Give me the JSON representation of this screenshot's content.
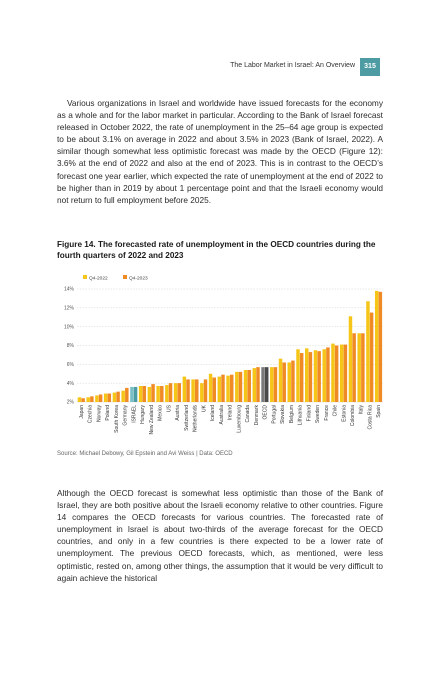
{
  "header": {
    "running_title": "The Labor Market in Israel: An Overview",
    "page_number": "315",
    "accent_color": "#4d9ba3"
  },
  "body": {
    "paragraph_1": "Various organizations in Israel and worldwide have issued forecasts for the economy as a whole and for the labor market in particular. According to the Bank of Israel forecast released in October 2022, the rate of unemployment in the 25–64 age group is expected to be about 3.1% on average in 2022 and about 3.5% in 2023 (Bank of Israel, 2022). A similar though somewhat less optimistic forecast was made by the OECD (Figure 12): 3.6% at the end of 2022 and also at the end of 2023. This is in contrast to the OECD’s forecast one year earlier, which expected the rate of unemployment at the end of 2022 to be higher than in 2019 by about 1 percentage point and that the Israeli economy would not return to full employment before 2025.",
    "paragraph_2": "Although the OECD forecast is somewhat less optimistic than those of the Bank of Israel, they are both positive about the Israeli economy relative to other countries. Figure 14 compares the OECD forecasts for various countries. The forecasted rate of unemployment in Israel is about two-thirds of the average forecast for the OECD countries, and only in a few countries is there expected to be a lower rate of unemployment. The previous OECD forecasts, which, as mentioned, were less optimistic, rested on, among other things, the assumption that it would be very difficult to again achieve the historical"
  },
  "figure": {
    "title": "Figure 14. The forecasted rate of unemployment in the OECD countries during the fourth quarters of 2022 and 2023",
    "source": "Source: Michael Debowy, Gil Epstein and Avi Weiss | Data: OECD"
  },
  "chart_data": {
    "type": "bar",
    "categories": [
      "Japan",
      "Czechia",
      "Norway",
      "Poland",
      "South Korea",
      "Germany",
      "ISRAEL",
      "Hungary",
      "New Zealand",
      "Mexico",
      "US",
      "Austria",
      "Switzerland",
      "Netherlands",
      "UK",
      "Iceland",
      "Australia",
      "Ireland",
      "Luxembourg",
      "Canada",
      "Denmark",
      "OECD",
      "Portugal",
      "Slovakia",
      "Belgium",
      "Lithuania",
      "Finland",
      "Sweden",
      "France",
      "Chile",
      "Estonia",
      "Colombia",
      "Italy",
      "Costa Rica",
      "Spain"
    ],
    "series": [
      {
        "name": "Q4-2022",
        "color": "#f5c518",
        "values": [
          2.5,
          2.5,
          2.7,
          2.9,
          3.0,
          3.2,
          3.6,
          3.7,
          3.6,
          3.7,
          3.8,
          4.0,
          4.7,
          4.4,
          4.0,
          5.0,
          4.7,
          4.8,
          5.2,
          5.4,
          5.6,
          5.7,
          5.7,
          6.6,
          6.2,
          7.6,
          7.7,
          7.5,
          7.6,
          8.2,
          8.1,
          11.1,
          9.3,
          12.7,
          13.8
        ]
      },
      {
        "name": "Q4-2023",
        "color": "#f08a24",
        "values": [
          2.4,
          2.6,
          2.8,
          2.9,
          3.1,
          3.5,
          3.6,
          3.7,
          3.9,
          3.7,
          4.0,
          4.0,
          4.4,
          4.4,
          4.4,
          4.6,
          4.9,
          4.9,
          5.2,
          5.4,
          5.7,
          5.7,
          5.7,
          6.2,
          6.4,
          7.2,
          7.3,
          7.4,
          7.8,
          8.0,
          8.1,
          9.3,
          9.3,
          11.5,
          13.7
        ]
      }
    ],
    "highlight": {
      "ISRAEL": [
        "#7bbfc6",
        "#4d9ba3"
      ],
      "OECD": [
        "#7a7a7a",
        "#4a4a4a"
      ]
    },
    "ylim": [
      2,
      14
    ],
    "yticks": [
      "2%",
      "4%",
      "6%",
      "8%",
      "10%",
      "12%",
      "14%"
    ],
    "grid": true,
    "legend_position": "top-left"
  }
}
